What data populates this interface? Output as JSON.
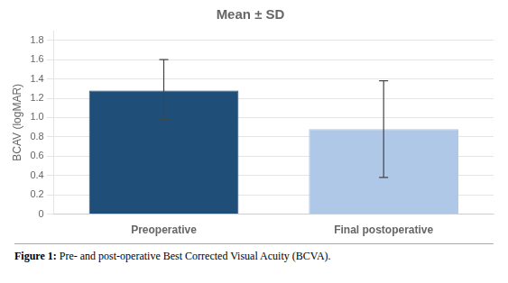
{
  "chart_data": {
    "type": "bar",
    "title": "Mean ± SD",
    "categories": [
      "Preoperative",
      "Final postoperative"
    ],
    "values": [
      1.28,
      0.88
    ],
    "error_upper": [
      0.32,
      0.5
    ],
    "error_lower": [
      0.3,
      0.5
    ],
    "colors": [
      "#1F4E79",
      "#B0C8E8"
    ],
    "ylabel": "BCAV (logMAR)",
    "ylim": [
      0,
      1.9
    ],
    "yticks": [
      0,
      0.2,
      0.4,
      0.6,
      0.8,
      {
        "value": 1.0,
        "label": "1.0"
      },
      1.2,
      1.4,
      1.6,
      1.8
    ],
    "grid": true,
    "caption": "Figure 1: Pre- and post-operative Best Corrected Visual Acuity (BCVA)."
  }
}
